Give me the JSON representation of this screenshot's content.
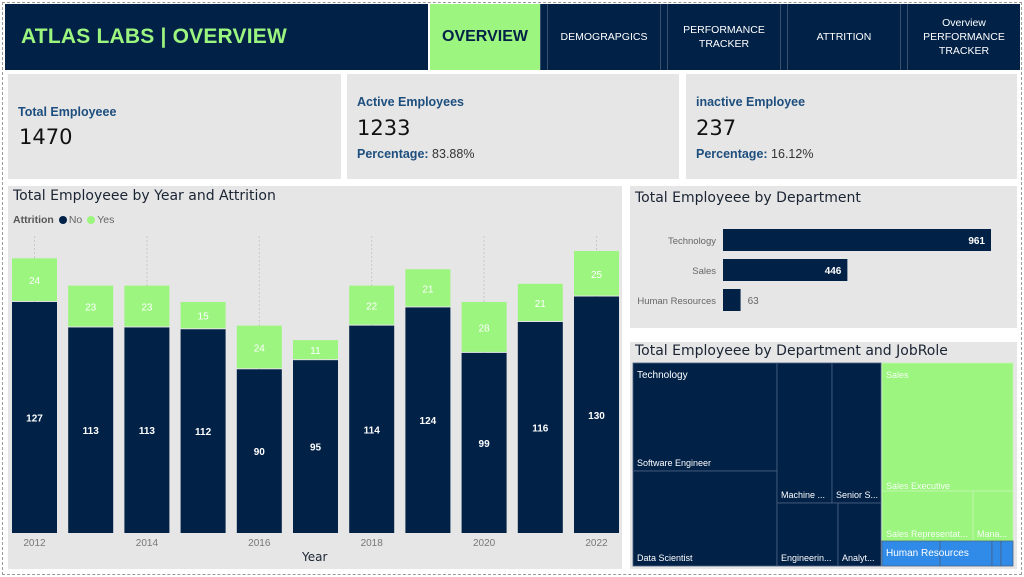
{
  "header": {
    "title": "ATLAS LABS | OVERVIEW",
    "tabs": [
      {
        "label": "OVERVIEW",
        "active": true
      },
      {
        "label": "DEMOGRAPGICS",
        "active": false
      },
      {
        "label": "PERFORMANCE TRACKER",
        "active": false
      },
      {
        "label": "ATTRITION",
        "active": false
      },
      {
        "label": "Overview PERFORMANCE TRACKER",
        "active": false
      }
    ]
  },
  "kpis": {
    "total": {
      "title": "Total Employeee",
      "value": "1470"
    },
    "active": {
      "title": "Active Employees",
      "value": "1233",
      "pct_label": "Percentage:",
      "pct_value": "83.88%"
    },
    "inactive": {
      "title": "inactive Employee",
      "value": "237",
      "pct_label": "Percentage:",
      "pct_value": "16.12%"
    }
  },
  "colors": {
    "navy": "#012147",
    "green": "#9cf57f",
    "hr_blue": "#2f8ae8",
    "panel": "#e6e6e6"
  },
  "chart_data": [
    {
      "type": "bar",
      "stacked": true,
      "title": "Total Employeee by Year and Attrition",
      "legend_title": "Attrition",
      "legend_placement": "top-left",
      "xlabel": "Year",
      "ylabel": "",
      "categories": [
        "2012",
        "2013",
        "2014",
        "2015",
        "2016",
        "2017",
        "2018",
        "2019",
        "2020",
        "2021",
        "2022"
      ],
      "tick_labels": [
        "2012",
        "",
        "2014",
        "",
        "2016",
        "",
        "2018",
        "",
        "2020",
        "",
        "2022"
      ],
      "series": [
        {
          "name": "No",
          "color": "#012147",
          "values": [
            127,
            113,
            113,
            112,
            90,
            95,
            114,
            124,
            99,
            116,
            130
          ]
        },
        {
          "name": "Yes",
          "color": "#9cf57f",
          "values": [
            24,
            23,
            23,
            15,
            24,
            11,
            22,
            21,
            28,
            21,
            25
          ]
        }
      ],
      "ylim": [
        0,
        160
      ],
      "grid": false
    },
    {
      "type": "bar",
      "orientation": "horizontal",
      "title": "Total Employeee by Department",
      "categories": [
        "Technology",
        "Sales",
        "Human Resources"
      ],
      "values": [
        961,
        446,
        63
      ],
      "xlim": [
        0,
        1000
      ]
    },
    {
      "type": "treemap",
      "title": "Total Employeee by Department and JobRole",
      "groups": [
        {
          "name": "Technology",
          "color": "#012147",
          "children": [
            {
              "label": "Software Engineer"
            },
            {
              "label": "Data Scientist"
            },
            {
              "label": "Machine ..."
            },
            {
              "label": "Senior S..."
            },
            {
              "label": "Engineerin..."
            },
            {
              "label": "Analyt..."
            }
          ]
        },
        {
          "name": "Sales",
          "color": "#9cf57f",
          "children": [
            {
              "label": "Sales Executive"
            },
            {
              "label": "Sales Representat..."
            },
            {
              "label": "Mana..."
            }
          ]
        },
        {
          "name": "Human Resources",
          "color": "#2f8ae8",
          "children": []
        }
      ]
    }
  ]
}
